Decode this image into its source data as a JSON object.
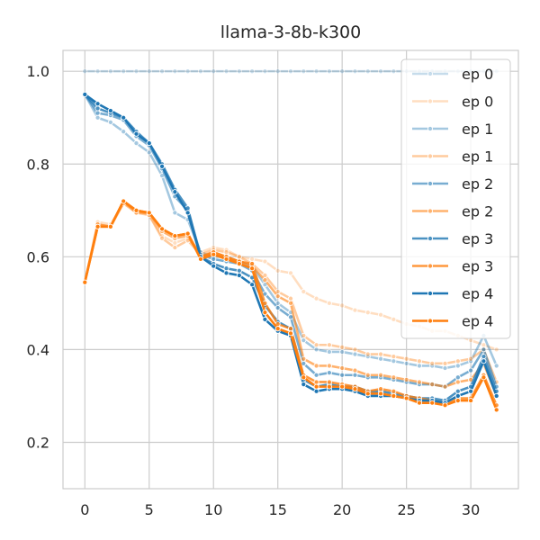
{
  "chart_data": {
    "type": "line",
    "title": "llama-3-8b-k300",
    "xlabel": "",
    "ylabel": "",
    "xlim": [
      -1.7,
      33.7
    ],
    "ylim": [
      0.1,
      1.045
    ],
    "xticks": [
      0,
      5,
      10,
      15,
      20,
      25,
      30
    ],
    "yticks": [
      0.2,
      0.4,
      0.6,
      0.8,
      1.0
    ],
    "ytick_labels": [
      "0.2",
      "0.4",
      "0.6",
      "0.8",
      "1.0"
    ],
    "grid": true,
    "legend_position": "upper-right",
    "x": [
      0,
      1,
      2,
      3,
      4,
      5,
      6,
      7,
      8,
      9,
      10,
      11,
      12,
      13,
      14,
      15,
      16,
      17,
      18,
      19,
      20,
      21,
      22,
      23,
      24,
      25,
      26,
      27,
      28,
      29,
      30,
      31,
      32
    ],
    "series": [
      {
        "name": "ep 0",
        "color": "#1f77b4",
        "opacity": 0.25,
        "values": [
          1.0,
          1.0,
          1.0,
          1.0,
          1.0,
          1.0,
          1.0,
          1.0,
          1.0,
          1.0,
          1.0,
          1.0,
          1.0,
          1.0,
          1.0,
          1.0,
          1.0,
          1.0,
          1.0,
          1.0,
          1.0,
          1.0,
          1.0,
          1.0,
          1.0,
          1.0,
          1.0,
          1.0,
          1.0,
          1.0,
          1.0,
          1.0,
          1.0
        ]
      },
      {
        "name": "ep 0",
        "color": "#ff7f0e",
        "opacity": 0.25,
        "values": [
          0.545,
          0.675,
          0.67,
          0.715,
          0.7,
          0.69,
          0.645,
          0.63,
          0.64,
          0.61,
          0.62,
          0.615,
          0.6,
          0.595,
          0.59,
          0.57,
          0.565,
          0.525,
          0.51,
          0.5,
          0.495,
          0.485,
          0.48,
          0.475,
          0.465,
          0.455,
          0.45,
          0.44,
          0.44,
          0.43,
          0.42,
          0.41,
          0.4
        ]
      },
      {
        "name": "ep 1",
        "color": "#1f77b4",
        "opacity": 0.4,
        "values": [
          0.95,
          0.9,
          0.89,
          0.87,
          0.845,
          0.825,
          0.775,
          0.695,
          0.68,
          0.61,
          0.6,
          0.6,
          0.59,
          0.58,
          0.54,
          0.5,
          0.48,
          0.42,
          0.4,
          0.395,
          0.395,
          0.39,
          0.385,
          0.38,
          0.375,
          0.37,
          0.365,
          0.365,
          0.36,
          0.365,
          0.375,
          0.43,
          0.365
        ]
      },
      {
        "name": "ep 1",
        "color": "#ff7f0e",
        "opacity": 0.4,
        "values": [
          0.545,
          0.67,
          0.665,
          0.715,
          0.695,
          0.69,
          0.64,
          0.62,
          0.635,
          0.605,
          0.615,
          0.61,
          0.6,
          0.585,
          0.56,
          0.525,
          0.51,
          0.43,
          0.41,
          0.41,
          0.405,
          0.4,
          0.39,
          0.39,
          0.385,
          0.38,
          0.375,
          0.37,
          0.37,
          0.375,
          0.38,
          0.4,
          0.33
        ]
      },
      {
        "name": "ep 2",
        "color": "#1f77b4",
        "opacity": 0.6,
        "values": [
          0.95,
          0.91,
          0.905,
          0.895,
          0.86,
          0.84,
          0.79,
          0.73,
          0.7,
          0.605,
          0.595,
          0.59,
          0.585,
          0.57,
          0.52,
          0.49,
          0.47,
          0.37,
          0.345,
          0.35,
          0.345,
          0.345,
          0.34,
          0.34,
          0.335,
          0.33,
          0.325,
          0.325,
          0.32,
          0.34,
          0.355,
          0.4,
          0.32
        ]
      },
      {
        "name": "ep 2",
        "color": "#ff7f0e",
        "opacity": 0.6,
        "values": [
          0.545,
          0.67,
          0.665,
          0.72,
          0.695,
          0.695,
          0.655,
          0.64,
          0.645,
          0.6,
          0.61,
          0.6,
          0.59,
          0.58,
          0.55,
          0.515,
          0.5,
          0.38,
          0.365,
          0.365,
          0.36,
          0.355,
          0.345,
          0.345,
          0.34,
          0.335,
          0.33,
          0.325,
          0.32,
          0.33,
          0.335,
          0.37,
          0.3
        ]
      },
      {
        "name": "ep 3",
        "color": "#1f77b4",
        "opacity": 0.8,
        "values": [
          0.95,
          0.92,
          0.91,
          0.9,
          0.87,
          0.845,
          0.8,
          0.745,
          0.705,
          0.6,
          0.585,
          0.575,
          0.57,
          0.555,
          0.495,
          0.46,
          0.445,
          0.335,
          0.32,
          0.325,
          0.32,
          0.32,
          0.31,
          0.31,
          0.305,
          0.3,
          0.295,
          0.295,
          0.29,
          0.31,
          0.32,
          0.385,
          0.31
        ]
      },
      {
        "name": "ep 3",
        "color": "#ff7f0e",
        "opacity": 0.8,
        "values": [
          0.545,
          0.665,
          0.665,
          0.72,
          0.7,
          0.695,
          0.66,
          0.645,
          0.65,
          0.6,
          0.61,
          0.6,
          0.59,
          0.585,
          0.5,
          0.455,
          0.445,
          0.345,
          0.33,
          0.33,
          0.325,
          0.32,
          0.31,
          0.315,
          0.31,
          0.3,
          0.295,
          0.29,
          0.285,
          0.295,
          0.295,
          0.345,
          0.28
        ]
      },
      {
        "name": "ep 4",
        "color": "#1f77b4",
        "opacity": 1.0,
        "values": [
          0.95,
          0.93,
          0.915,
          0.9,
          0.865,
          0.845,
          0.795,
          0.74,
          0.695,
          0.6,
          0.58,
          0.565,
          0.56,
          0.54,
          0.465,
          0.44,
          0.43,
          0.325,
          0.31,
          0.315,
          0.315,
          0.31,
          0.3,
          0.3,
          0.3,
          0.295,
          0.29,
          0.29,
          0.285,
          0.3,
          0.31,
          0.375,
          0.3
        ]
      },
      {
        "name": "ep 4",
        "color": "#ff7f0e",
        "opacity": 1.0,
        "values": [
          0.545,
          0.665,
          0.665,
          0.72,
          0.7,
          0.695,
          0.66,
          0.645,
          0.65,
          0.595,
          0.605,
          0.595,
          0.585,
          0.575,
          0.48,
          0.445,
          0.435,
          0.34,
          0.32,
          0.32,
          0.32,
          0.315,
          0.305,
          0.305,
          0.3,
          0.295,
          0.285,
          0.285,
          0.28,
          0.29,
          0.29,
          0.34,
          0.27
        ]
      }
    ]
  }
}
